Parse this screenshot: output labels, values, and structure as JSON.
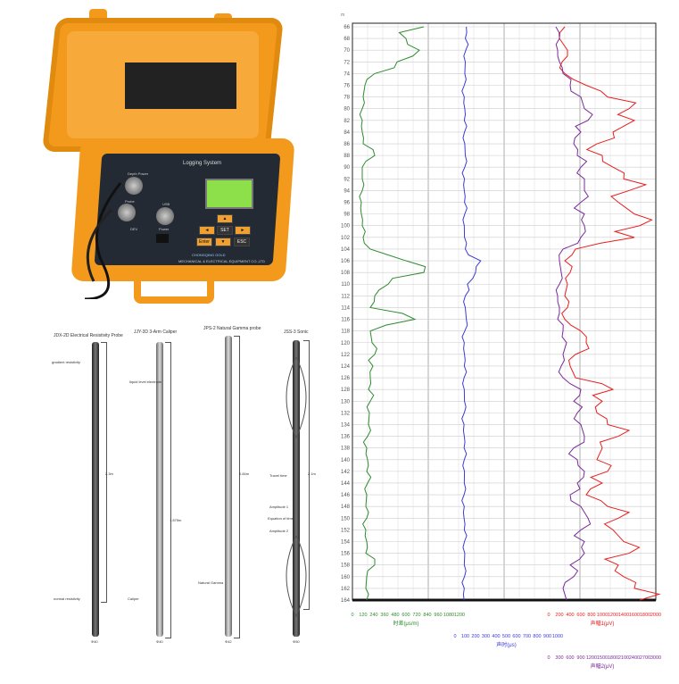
{
  "device": {
    "panel_title": "Logging System",
    "labels": [
      "Depth Power",
      "Probe",
      "USB",
      "DEV",
      "Power"
    ],
    "keys": [
      "▲",
      "◄",
      "SET",
      "►",
      "Enter",
      "▼",
      "ESC"
    ],
    "brand": "CHONGQING GOLD",
    "company": "MECHANICAL & ELECTRICAL EQUIPMENT CO.,LTD"
  },
  "probes": [
    {
      "title": "JDX-2D Electrical Resistivity Probe",
      "length": "2.3m",
      "notes": [
        "gradient resistivity",
        "normal resistivity"
      ],
      "bottom": "Φ40"
    },
    {
      "title": "JJY-3D 3-Arm Caliper",
      "length": "1.875m",
      "notes": [
        "liquid level electrode",
        "Caliper"
      ],
      "bottom": "Φ40"
    },
    {
      "title": "JPS-2 Natural Gamma probe",
      "length": "0.84m",
      "notes": [
        "Natural Gamma"
      ],
      "bottom": "Φ42"
    },
    {
      "title": "JSS-3 Sonic",
      "length": "2.1m",
      "notes": [
        "Travel time",
        "Amplitude 1",
        "Equation of time",
        "Amplitude 2"
      ],
      "bottom": "Φ50"
    }
  ],
  "chart_data": {
    "type": "line",
    "depth_unit": "m",
    "depth_ticks": [
      66,
      68,
      70,
      72,
      74,
      76,
      78,
      80,
      82,
      84,
      86,
      88,
      90,
      92,
      94,
      96,
      98,
      100,
      102,
      104,
      106,
      108,
      110,
      112,
      114,
      116,
      118,
      120,
      122,
      124,
      126,
      128,
      130,
      132,
      134,
      136,
      138,
      140,
      142,
      144,
      146,
      148,
      150,
      152,
      154,
      156,
      158,
      160,
      162,
      164
    ],
    "grid": true,
    "depth": [
      66,
      68,
      70,
      72,
      74,
      76,
      78,
      80,
      82,
      84,
      86,
      88,
      90,
      92,
      94,
      96,
      98,
      100,
      102,
      104,
      106,
      108,
      110,
      112,
      114,
      116,
      118,
      120,
      122,
      124,
      126,
      128,
      130,
      132,
      134,
      136,
      138,
      140,
      142,
      144,
      146,
      148,
      150,
      152,
      154,
      156,
      158,
      160,
      162,
      164
    ],
    "series": [
      {
        "name": "时差(μs/m)",
        "color": "#2e8b2e",
        "ticks": [
          "0",
          "120",
          "240",
          "360",
          "480",
          "600",
          "720",
          "840",
          "960",
          "1080",
          "1200"
        ],
        "range": [
          0,
          1200
        ],
        "values": [
          800,
          600,
          750,
          500,
          250,
          140,
          120,
          110,
          110,
          110,
          120,
          250,
          110,
          110,
          110,
          100,
          100,
          110,
          120,
          200,
          600,
          800,
          400,
          250,
          200,
          700,
          200,
          220,
          250,
          230,
          200,
          180,
          200,
          190,
          180,
          170,
          160,
          170,
          160,
          170,
          160,
          150,
          160,
          150,
          160,
          150,
          250,
          160,
          150,
          160
        ]
      },
      {
        "name": "声时(μs)",
        "color": "#3b3bd6",
        "ticks": [
          "0",
          "100",
          "200",
          "300",
          "400",
          "500",
          "600",
          "700",
          "800",
          "900",
          "1000"
        ],
        "range": [
          0,
          1000
        ],
        "values": [
          110,
          100,
          105,
          100,
          95,
          90,
          90,
          95,
          90,
          92,
          95,
          100,
          95,
          92,
          90,
          92,
          95,
          90,
          92,
          100,
          250,
          200,
          120,
          100,
          100,
          110,
          95,
          90,
          92,
          90,
          88,
          90,
          92,
          90,
          88,
          90,
          88,
          90,
          92,
          90,
          88,
          90,
          88,
          90,
          92,
          95,
          90,
          92,
          90,
          88
        ]
      },
      {
        "name": "声幅1(μV)",
        "color": "#e81e1e",
        "ticks": [
          "0",
          "200",
          "400",
          "600",
          "800",
          "1000",
          "1200",
          "1400",
          "1600",
          "1800",
          "2000"
        ],
        "range": [
          0,
          2000
        ],
        "values": [
          300,
          200,
          350,
          250,
          300,
          700,
          1100,
          1500,
          1600,
          1200,
          900,
          1000,
          1200,
          1400,
          1500,
          1300,
          1600,
          1700,
          1600,
          500,
          300,
          400,
          350,
          300,
          350,
          300,
          600,
          700,
          500,
          400,
          500,
          1200,
          1000,
          900,
          1100,
          1300,
          1000,
          900,
          1100,
          1000,
          700,
          1100,
          1300,
          1200,
          1400,
          1500,
          1300,
          1400,
          1600,
          1700
        ]
      },
      {
        "name": "声幅2(μV)",
        "color": "#7a2a9a",
        "ticks": [
          "0",
          "300",
          "600",
          "900",
          "1200",
          "1500",
          "1800",
          "2100",
          "2400",
          "2700",
          "3000"
        ],
        "range": [
          0,
          3000
        ],
        "values": [
          200,
          300,
          250,
          300,
          400,
          600,
          900,
          1000,
          1100,
          900,
          700,
          800,
          900,
          1000,
          1000,
          900,
          1000,
          1000,
          900,
          400,
          300,
          350,
          300,
          250,
          300,
          250,
          400,
          500,
          400,
          350,
          400,
          900,
          700,
          800,
          900,
          1000,
          700,
          800,
          1000,
          800,
          600,
          900,
          1100,
          900,
          1000,
          1000,
          600,
          700,
          400,
          500
        ]
      }
    ]
  }
}
